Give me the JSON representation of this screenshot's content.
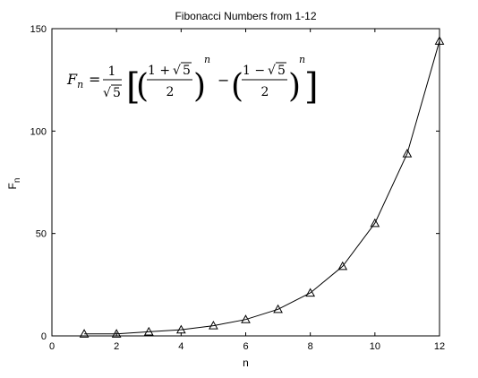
{
  "chart_data": {
    "type": "line",
    "title": "Fibonacci Numbers from 1-12",
    "xlabel": "n",
    "ylabel": "F",
    "ylabel_subscript": "n",
    "xlim": [
      0,
      12
    ],
    "ylim": [
      0,
      150
    ],
    "x_ticks": [
      0,
      2,
      4,
      6,
      8,
      10,
      12
    ],
    "y_ticks": [
      0,
      50,
      100,
      150
    ],
    "grid": false,
    "series": [
      {
        "x": [
          1,
          2,
          3,
          4,
          5,
          6,
          7,
          8,
          9,
          10,
          11,
          12
        ],
        "values": [
          1,
          1,
          2,
          3,
          5,
          8,
          13,
          21,
          34,
          55,
          89,
          144
        ],
        "marker": "triangle",
        "line_color": "#000000"
      }
    ],
    "annotation": {
      "lhs_var": "F",
      "lhs_sub": "n",
      "equals": "=",
      "numerator_one": "1",
      "sqrt_five": "5",
      "sqrt_symbol": "√",
      "plus_expr": "1 + ",
      "minus_expr": "1 − ",
      "two": "2",
      "exponent": "n",
      "minus": "−",
      "left_bracket": "[",
      "right_bracket": "]",
      "left_paren": "(",
      "right_paren": ")"
    }
  }
}
